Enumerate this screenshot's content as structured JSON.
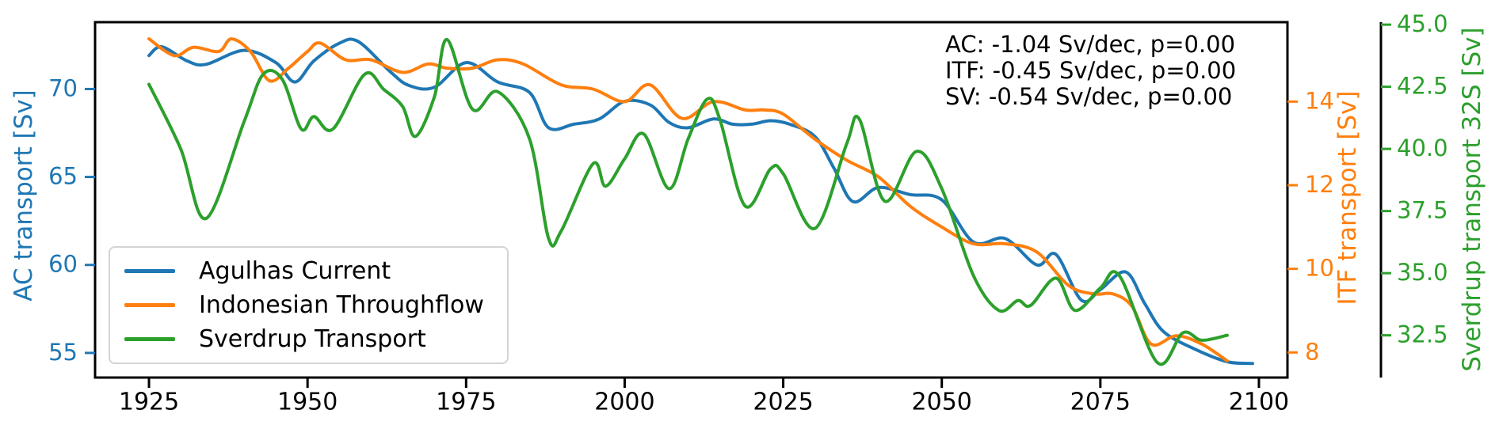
{
  "annotation": {
    "lines": [
      "AC: -1.04 Sv/dec, p=0.00",
      "ITF: -0.45 Sv/dec, p=0.00",
      "SV: -0.54 Sv/dec, p=0.00"
    ]
  },
  "legend": {
    "items": [
      {
        "label": "Agulhas Current",
        "color": "#1f77b4"
      },
      {
        "label": "Indonesian Throughflow",
        "color": "#ff7f0e"
      },
      {
        "label": "Sverdrup Transport",
        "color": "#2ca02c"
      }
    ],
    "position": "lower left"
  },
  "chart_data": {
    "type": "line",
    "title": "",
    "xlabel": "",
    "grid": false,
    "xlim": [
      1916.5,
      2104.5
    ],
    "x_ticks": [
      "1925",
      "1950",
      "1975",
      "2000",
      "2025",
      "2050",
      "2075",
      "2100"
    ],
    "axes": [
      {
        "id": "ac",
        "label": "AC transport [Sv]",
        "color": "#1f77b4",
        "side": "left",
        "ylim": [
          53.6,
          73.8
        ],
        "ticks": [
          "55",
          "60",
          "65",
          "70"
        ]
      },
      {
        "id": "itf",
        "label": "ITF transport [Sv]",
        "color": "#ff7f0e",
        "side": "right",
        "ylim": [
          7.4,
          15.9
        ],
        "ticks": [
          "8",
          "10",
          "12",
          "14"
        ]
      },
      {
        "id": "sv",
        "label": "Sverdrup transport 32S [Sv]",
        "color": "#2ca02c",
        "side": "right-offset",
        "ylim": [
          30.8,
          45.1
        ],
        "ticks": [
          "32.5",
          "35.0",
          "37.5",
          "40.0",
          "42.5",
          "45.0"
        ]
      }
    ],
    "series": [
      {
        "name": "Agulhas Current",
        "axis": "ac",
        "color": "#1f77b4",
        "units": "Sv",
        "trend": "-1.04 Sv/dec",
        "p_value": "0.00",
        "points": [
          [
            1925,
            71.9
          ],
          [
            1927,
            72.4
          ],
          [
            1931,
            71.6
          ],
          [
            1934,
            71.4
          ],
          [
            1940,
            72.2
          ],
          [
            1945,
            71.5
          ],
          [
            1948,
            70.4
          ],
          [
            1951,
            71.6
          ],
          [
            1955,
            72.6
          ],
          [
            1958,
            72.7
          ],
          [
            1963,
            71.0
          ],
          [
            1966,
            70.2
          ],
          [
            1970,
            70.1
          ],
          [
            1975,
            71.5
          ],
          [
            1980,
            70.4
          ],
          [
            1985,
            69.8
          ],
          [
            1988,
            67.8
          ],
          [
            1992,
            68.0
          ],
          [
            1996,
            68.3
          ],
          [
            2000,
            69.3
          ],
          [
            2004,
            69.1
          ],
          [
            2007,
            68.1
          ],
          [
            2010,
            67.8
          ],
          [
            2014,
            68.3
          ],
          [
            2017,
            68.0
          ],
          [
            2020,
            68.0
          ],
          [
            2023,
            68.2
          ],
          [
            2026,
            68.0
          ],
          [
            2030,
            67.3
          ],
          [
            2033,
            65.5
          ],
          [
            2036,
            63.6
          ],
          [
            2040,
            64.4
          ],
          [
            2045,
            64.0
          ],
          [
            2050,
            63.7
          ],
          [
            2055,
            61.3
          ],
          [
            2060,
            61.5
          ],
          [
            2065,
            60.0
          ],
          [
            2068,
            60.6
          ],
          [
            2072,
            58.0
          ],
          [
            2075,
            58.6
          ],
          [
            2079,
            59.6
          ],
          [
            2082,
            57.8
          ],
          [
            2085,
            56.2
          ],
          [
            2090,
            55.2
          ],
          [
            2095,
            54.5
          ],
          [
            2099,
            54.4
          ]
        ]
      },
      {
        "name": "Indonesian Throughflow",
        "axis": "itf",
        "color": "#ff7f0e",
        "units": "Sv",
        "trend": "-0.45 Sv/dec",
        "p_value": "0.00",
        "points": [
          [
            1925,
            15.5
          ],
          [
            1929,
            15.1
          ],
          [
            1932,
            15.3
          ],
          [
            1936,
            15.2
          ],
          [
            1938,
            15.5
          ],
          [
            1941,
            15.2
          ],
          [
            1944,
            14.5
          ],
          [
            1947,
            14.8
          ],
          [
            1950,
            15.2
          ],
          [
            1952,
            15.4
          ],
          [
            1956,
            15.0
          ],
          [
            1960,
            15.0
          ],
          [
            1965,
            14.7
          ],
          [
            1969,
            14.9
          ],
          [
            1972,
            14.8
          ],
          [
            1976,
            14.8
          ],
          [
            1980,
            15.0
          ],
          [
            1984,
            14.9
          ],
          [
            1990,
            14.4
          ],
          [
            1995,
            14.3
          ],
          [
            2000,
            14.0
          ],
          [
            2004,
            14.4
          ],
          [
            2009,
            13.6
          ],
          [
            2014,
            14.0
          ],
          [
            2019,
            13.8
          ],
          [
            2022,
            13.8
          ],
          [
            2025,
            13.7
          ],
          [
            2030,
            13.1
          ],
          [
            2035,
            12.6
          ],
          [
            2040,
            12.2
          ],
          [
            2045,
            11.5
          ],
          [
            2050,
            11.0
          ],
          [
            2055,
            10.6
          ],
          [
            2060,
            10.6
          ],
          [
            2065,
            10.4
          ],
          [
            2070,
            9.6
          ],
          [
            2074,
            9.4
          ],
          [
            2077,
            9.4
          ],
          [
            2080,
            9.1
          ],
          [
            2083,
            8.2
          ],
          [
            2087,
            8.4
          ],
          [
            2091,
            8.2
          ],
          [
            2095,
            7.8
          ]
        ]
      },
      {
        "name": "Sverdrup Transport",
        "axis": "sv",
        "color": "#2ca02c",
        "units": "Sv",
        "trend": "-0.54 Sv/dec",
        "p_value": "0.00",
        "points": [
          [
            1925,
            42.6
          ],
          [
            1930,
            40.0
          ],
          [
            1934,
            37.2
          ],
          [
            1940,
            41.1
          ],
          [
            1943,
            43.0
          ],
          [
            1946,
            42.8
          ],
          [
            1949,
            40.8
          ],
          [
            1951,
            41.3
          ],
          [
            1954,
            40.8
          ],
          [
            1959,
            43.0
          ],
          [
            1962,
            42.4
          ],
          [
            1965,
            41.7
          ],
          [
            1967,
            40.5
          ],
          [
            1970,
            42.1
          ],
          [
            1972,
            44.4
          ],
          [
            1976,
            41.6
          ],
          [
            1980,
            42.3
          ],
          [
            1985,
            40.4
          ],
          [
            1988,
            36.4
          ],
          [
            1990,
            36.7
          ],
          [
            1995,
            39.4
          ],
          [
            1997,
            38.5
          ],
          [
            2000,
            39.6
          ],
          [
            2003,
            40.6
          ],
          [
            2007,
            38.4
          ],
          [
            2010,
            40.4
          ],
          [
            2013,
            42.0
          ],
          [
            2015,
            41.2
          ],
          [
            2019,
            37.7
          ],
          [
            2023,
            39.2
          ],
          [
            2025,
            39.0
          ],
          [
            2030,
            36.8
          ],
          [
            2035,
            40.2
          ],
          [
            2037,
            41.2
          ],
          [
            2041,
            37.9
          ],
          [
            2046,
            39.9
          ],
          [
            2050,
            38.4
          ],
          [
            2055,
            34.9
          ],
          [
            2059,
            33.5
          ],
          [
            2062,
            33.9
          ],
          [
            2064,
            33.7
          ],
          [
            2068,
            34.8
          ],
          [
            2071,
            33.5
          ],
          [
            2075,
            34.4
          ],
          [
            2078,
            34.9
          ],
          [
            2084,
            31.4
          ],
          [
            2088,
            32.6
          ],
          [
            2091,
            32.3
          ],
          [
            2095,
            32.5
          ]
        ]
      }
    ]
  }
}
